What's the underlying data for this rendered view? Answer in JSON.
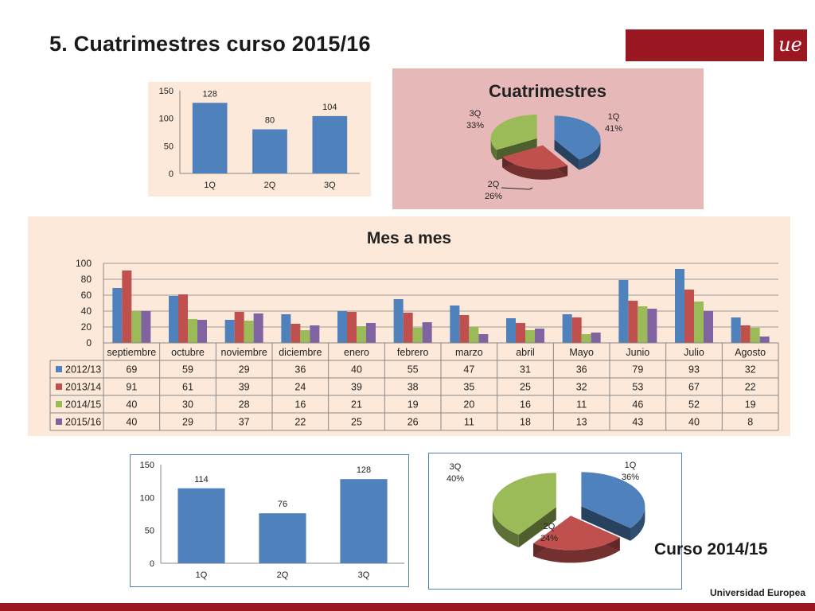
{
  "page": {
    "title": "5. Cuatrimestres curso 2015/16",
    "logo_text": "ue",
    "footer": "Universidad Europea",
    "curso_label": "Curso 2014/15"
  },
  "colors": {
    "blue": "#4f81bd",
    "red": "#c0504d",
    "green": "#9bbb59",
    "purple": "#8064a2",
    "brand": "#9b1722",
    "panel_peach": "#fde9d9",
    "panel_pink": "#e6b9b8"
  },
  "chart_data": [
    {
      "type": "bar",
      "categories": [
        "1Q",
        "2Q",
        "3Q"
      ],
      "values": [
        128,
        80,
        104
      ],
      "title": "",
      "ylim": [
        0,
        150
      ],
      "yticks": [
        0,
        50,
        100,
        150
      ],
      "grid": false,
      "color": "#4f81bd"
    },
    {
      "type": "pie",
      "title": "Cuatrimestres",
      "labels": [
        "1Q",
        "2Q",
        "3Q"
      ],
      "percent": [
        41,
        26,
        33
      ],
      "colors": [
        "#4f81bd",
        "#c0504d",
        "#9bbb59"
      ]
    },
    {
      "type": "bar",
      "title": "Mes a mes",
      "categories": [
        "septiembre",
        "octubre",
        "noviembre",
        "diciembre",
        "enero",
        "febrero",
        "marzo",
        "abril",
        "Mayo",
        "Junio",
        "Julio",
        "Agosto"
      ],
      "ylim": [
        0,
        100
      ],
      "yticks": [
        0,
        20,
        40,
        60,
        80,
        100
      ],
      "grid": true,
      "legend": "data-table",
      "series": [
        {
          "name": "2012/13",
          "color": "#4f81bd",
          "values": [
            69,
            59,
            29,
            36,
            40,
            55,
            47,
            31,
            36,
            79,
            93,
            32
          ]
        },
        {
          "name": "2013/14",
          "color": "#c0504d",
          "values": [
            91,
            61,
            39,
            24,
            39,
            38,
            35,
            25,
            32,
            53,
            67,
            22
          ]
        },
        {
          "name": "2014/15",
          "color": "#9bbb59",
          "values": [
            40,
            30,
            28,
            16,
            21,
            19,
            20,
            16,
            11,
            46,
            52,
            19
          ]
        },
        {
          "name": "2015/16",
          "color": "#8064a2",
          "values": [
            40,
            29,
            37,
            22,
            25,
            26,
            11,
            18,
            13,
            43,
            40,
            8
          ]
        }
      ]
    },
    {
      "type": "bar",
      "categories": [
        "1Q",
        "2Q",
        "3Q"
      ],
      "values": [
        114,
        76,
        128
      ],
      "title": "",
      "ylim": [
        0,
        150
      ],
      "yticks": [
        0,
        50,
        100,
        150
      ],
      "grid": false,
      "color": "#4f81bd"
    },
    {
      "type": "pie",
      "title": "",
      "labels": [
        "1Q",
        "2Q",
        "3Q"
      ],
      "percent": [
        36,
        24,
        40
      ],
      "colors": [
        "#4f81bd",
        "#c0504d",
        "#9bbb59"
      ]
    }
  ]
}
